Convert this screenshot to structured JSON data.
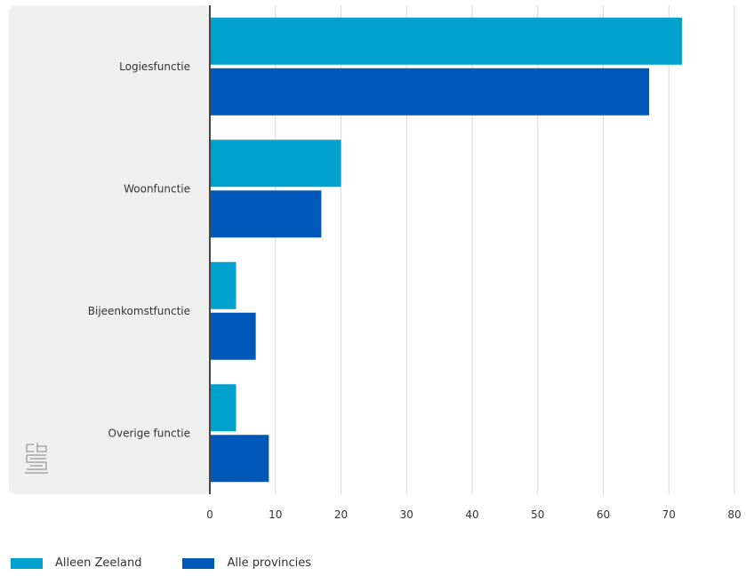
{
  "chart_data": {
    "type": "bar",
    "orientation": "horizontal",
    "categories": [
      "Logiesfunctie",
      "Woonfunctie",
      "Bijeenkomstfunctie",
      "Overige functie"
    ],
    "series": [
      {
        "name": "Alleen Zeeland",
        "color": "#00a1cd",
        "values": [
          72,
          20,
          4,
          4
        ]
      },
      {
        "name": "Alle provincies",
        "color": "#0058b8",
        "values": [
          67,
          17,
          7,
          9
        ]
      }
    ],
    "xlim": [
      0,
      80
    ],
    "x_ticks": [
      "0",
      "10",
      "20",
      "30",
      "40",
      "50",
      "60",
      "70",
      "80"
    ],
    "grid": true,
    "legend_position": "bottom-left",
    "logo": "cbs"
  }
}
